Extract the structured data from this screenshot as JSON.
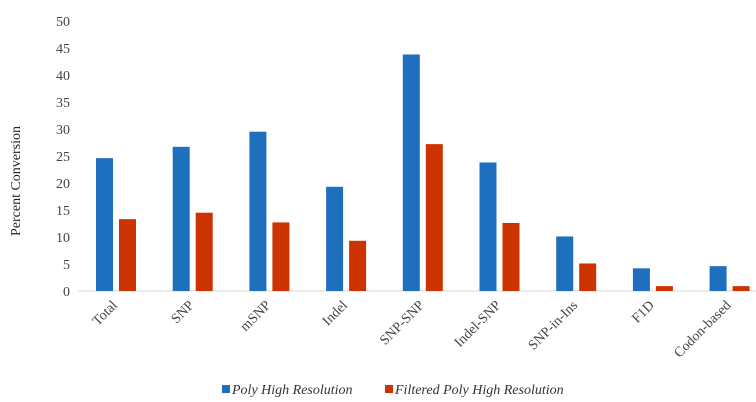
{
  "chart_data": {
    "type": "bar",
    "title": "",
    "xlabel": "",
    "ylabel": "Percent Conversion",
    "ylim": [
      0,
      50
    ],
    "yticks": [
      0,
      5,
      10,
      15,
      20,
      25,
      30,
      35,
      40,
      45,
      50
    ],
    "grid": false,
    "legend_position": "bottom",
    "categories": [
      "Total",
      "SNP",
      "mSNP",
      "Indel",
      "SNP-SNP",
      "Indel-SNP",
      "SNP-in-Ins",
      "F1D",
      "Codon-based"
    ],
    "series": [
      {
        "name": "Poly High Resolution",
        "color": "#1f6fbf",
        "values": [
          24.6,
          26.7,
          29.5,
          19.3,
          43.8,
          23.8,
          10.1,
          4.2,
          4.6
        ]
      },
      {
        "name": "Filtered Poly High Resolution",
        "color": "#cc3300",
        "values": [
          13.3,
          14.5,
          12.7,
          9.3,
          27.2,
          12.6,
          5.1,
          0.9,
          0.9
        ]
      }
    ]
  }
}
